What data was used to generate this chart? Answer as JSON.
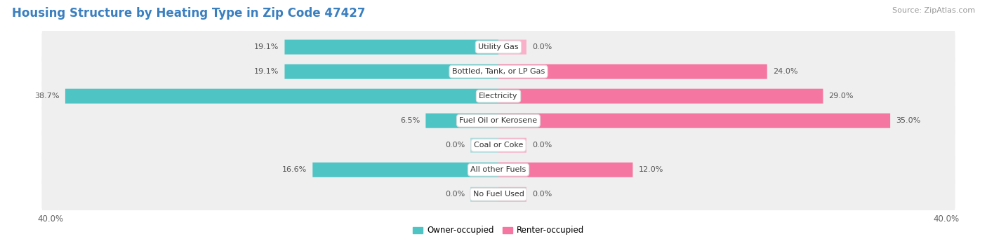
{
  "title": "Housing Structure by Heating Type in Zip Code 47427",
  "source": "Source: ZipAtlas.com",
  "categories": [
    "Utility Gas",
    "Bottled, Tank, or LP Gas",
    "Electricity",
    "Fuel Oil or Kerosene",
    "Coal or Coke",
    "All other Fuels",
    "No Fuel Used"
  ],
  "owner_values": [
    19.1,
    19.1,
    38.7,
    6.5,
    0.0,
    16.6,
    0.0
  ],
  "renter_values": [
    0.0,
    24.0,
    29.0,
    35.0,
    0.0,
    12.0,
    0.0
  ],
  "owner_color": "#4FC4C4",
  "renter_color": "#F576A0",
  "owner_color_zero": "#A8DCDC",
  "renter_color_zero": "#F9B0C8",
  "owner_label": "Owner-occupied",
  "renter_label": "Renter-occupied",
  "xlim": 40.0,
  "zero_stub": 2.5,
  "bar_height": 0.6,
  "row_bg_color": "#efefef",
  "background_color": "#ffffff",
  "title_fontsize": 12,
  "label_fontsize": 8,
  "tick_fontsize": 8.5,
  "source_fontsize": 8,
  "title_color": "#3a7fbf",
  "value_color": "#555555",
  "cat_label_color": "#333333"
}
